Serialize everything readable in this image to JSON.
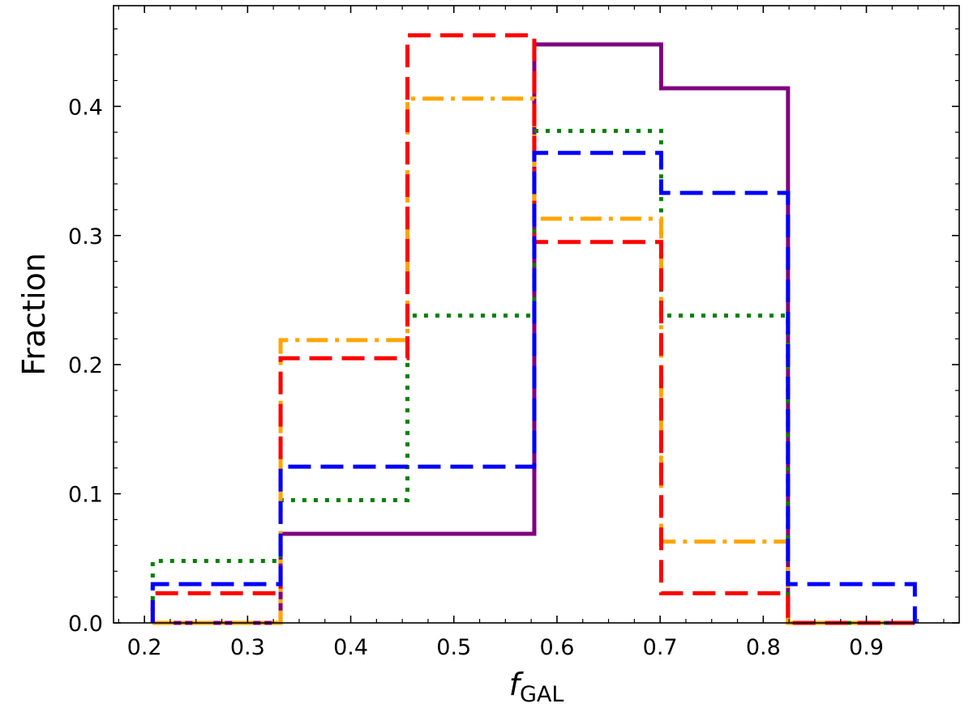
{
  "chart_data": {
    "type": "histogram-step",
    "xlabel": "f",
    "xlabel_sub": "GAL",
    "ylabel": "Fraction",
    "xlim": [
      0.17,
      0.99
    ],
    "ylim": [
      0.0,
      0.478
    ],
    "xticks": [
      0.2,
      0.3,
      0.4,
      0.5,
      0.6,
      0.7,
      0.8,
      0.9
    ],
    "xtick_labels": [
      "0.2",
      "0.3",
      "0.4",
      "0.5",
      "0.6",
      "0.7",
      "0.8",
      "0.9"
    ],
    "yticks": [
      0.0,
      0.1,
      0.2,
      0.3,
      0.4
    ],
    "ytick_labels": [
      "0.0",
      "0.1",
      "0.2",
      "0.3",
      "0.4"
    ],
    "bin_edges": [
      0.208,
      0.332,
      0.455,
      0.578,
      0.701,
      0.824,
      0.947
    ],
    "series": [
      {
        "color": "#800080",
        "style": "solid",
        "values": [
          0.0,
          0.069,
          0.069,
          0.448,
          0.414,
          0.0
        ]
      },
      {
        "color": "#008000",
        "style": "dotted",
        "values": [
          0.048,
          0.095,
          0.238,
          0.381,
          0.238,
          0.0
        ]
      },
      {
        "color": "#ffa500",
        "style": "dashdot",
        "values": [
          0.0,
          0.219,
          0.406,
          0.313,
          0.063,
          0.0
        ]
      },
      {
        "color": "#ff0000",
        "style": "dashed",
        "values": [
          0.023,
          0.205,
          0.455,
          0.295,
          0.023,
          0.0
        ]
      },
      {
        "color": "#0000ff",
        "style": "dashed",
        "values": [
          0.03,
          0.121,
          0.121,
          0.364,
          0.333,
          0.03
        ]
      }
    ]
  }
}
